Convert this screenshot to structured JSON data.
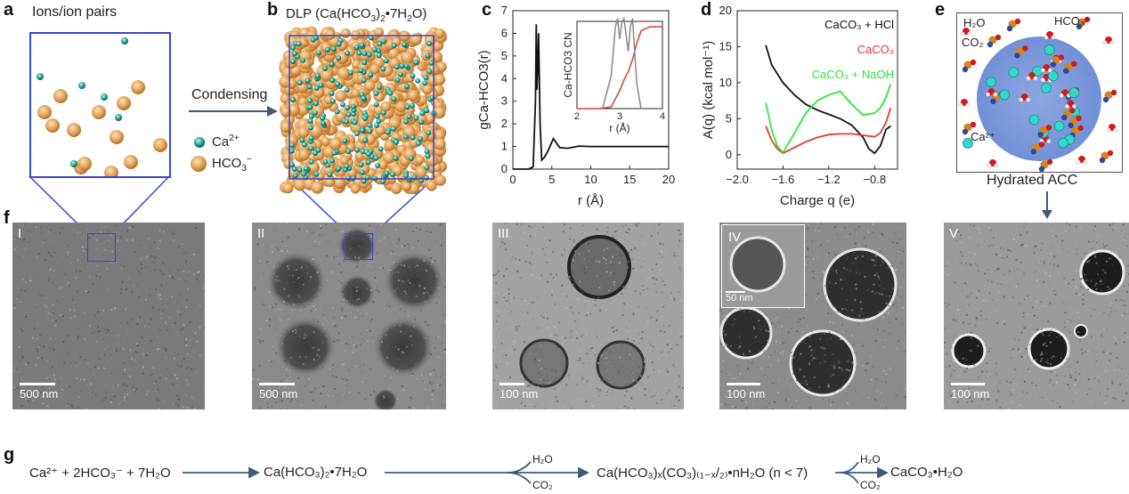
{
  "panel_a": {
    "letter": "a",
    "title": "Ions/ion pairs",
    "arrow_label": "Condensing",
    "legend_ca": "Ca",
    "legend_ca_sup": "2+",
    "legend_hco3": "HCO",
    "legend_hco3_sub": "3",
    "legend_hco3_sup": "−"
  },
  "panel_b": {
    "letter": "b",
    "title_pre": "DLP (Ca(HCO",
    "title_sub": "3",
    "title_mid": ")",
    "title_sub2": "2",
    "title_post": "•7H",
    "title_sub3": "2",
    "title_end": "O)"
  },
  "panel_c": {
    "letter": "c"
  },
  "panel_d": {
    "letter": "d"
  },
  "panel_e": {
    "letter": "e",
    "h2o": "H₂O",
    "hco3": "HCO₃⁻",
    "co2": "CO₂",
    "ca": "Ca²⁺",
    "caption": "Hydrated ACC"
  },
  "panel_f": {
    "letter": "f",
    "images": [
      {
        "num": "I",
        "scale": "500 nm"
      },
      {
        "num": "II",
        "scale": "500 nm"
      },
      {
        "num": "III",
        "scale": "100 nm"
      },
      {
        "num": "IV",
        "scale": "100 nm",
        "inset_scale": "50 nm"
      },
      {
        "num": "V",
        "scale": "100 nm"
      }
    ]
  },
  "panel_g": {
    "letter": "g",
    "eq1": "Ca²⁺ + 2HCO₃⁻ + 7H₂O",
    "eq2": "Ca(HCO₃)₂•7H₂O",
    "eq3": "Ca(HCO₃)ₓ(CO₃)₍₁₋ₓ/₂₎•nH₂O (n < 7)",
    "eq4": "CaCO₃•H₂O",
    "branch_up": "H₂O",
    "branch_down": "CO₂"
  },
  "chart_data": [
    {
      "type": "line",
      "panel": "c",
      "ylabel": "gCa-HCO3(r)",
      "xlabel": "r (Å)",
      "xlim": [
        0,
        20
      ],
      "ylim": [
        0,
        7
      ],
      "xticks": [
        0,
        5,
        10,
        15,
        20
      ],
      "yticks": [
        0,
        1,
        2,
        3,
        4,
        5,
        6,
        7
      ],
      "series": [
        {
          "color": "#111111",
          "x": [
            0,
            2.0,
            2.6,
            2.9,
            3.0,
            3.1,
            3.2,
            3.3,
            3.5,
            3.7,
            4.0,
            4.5,
            5.2,
            6.0,
            7.0,
            8.5,
            10,
            15,
            20
          ],
          "y": [
            0,
            0,
            0.1,
            3.0,
            6.4,
            3.5,
            4.5,
            6.0,
            2.0,
            0.4,
            0.5,
            0.8,
            1.35,
            0.95,
            0.92,
            1.02,
            1.0,
            1.0,
            1.0
          ]
        }
      ],
      "inset": {
        "ylabel": "Ca-HCO3 CN",
        "xlabel": "r (Å)",
        "xlim": [
          2,
          4
        ],
        "xticks": [
          2,
          3,
          4
        ],
        "series": [
          {
            "color": "#e53935",
            "x": [
              2.0,
              2.5,
              2.8,
              2.9,
              3.0,
              3.1,
              3.2,
              3.3,
              3.4,
              3.5,
              3.7,
              3.9,
              4.0
            ],
            "y": [
              0,
              0,
              0.02,
              0.12,
              0.22,
              0.35,
              0.45,
              0.6,
              0.8,
              0.95,
              1.0,
              1.0,
              1.0
            ]
          },
          {
            "color": "#888888",
            "x": [
              2.6,
              2.8,
              2.9,
              2.95,
              3.0,
              3.05,
              3.1,
              3.2,
              3.25,
              3.3,
              3.4,
              3.5
            ],
            "y": [
              0,
              0.4,
              1.0,
              1.1,
              0.85,
              1.05,
              1.1,
              0.7,
              1.0,
              1.1,
              0.3,
              0
            ]
          }
        ]
      }
    },
    {
      "type": "line",
      "panel": "d",
      "ylabel": "A(q) (kcal mol⁻¹)",
      "xlabel": "Charge q (e)",
      "xlim": [
        -2.0,
        -0.6
      ],
      "ylim": [
        -2,
        20
      ],
      "xticks": [
        -2.0,
        -1.6,
        -1.2,
        -0.8
      ],
      "yticks": [
        0,
        5,
        10,
        15,
        20
      ],
      "legend": [
        "CaCO₃ + HCl",
        "CaCO₃",
        "CaCO₃ + NaOH"
      ],
      "series": [
        {
          "name": "CaCO₃ + HCl",
          "color": "#111111",
          "x": [
            -1.75,
            -1.7,
            -1.6,
            -1.5,
            -1.4,
            -1.3,
            -1.2,
            -1.1,
            -1.0,
            -0.9,
            -0.85,
            -0.8,
            -0.75,
            -0.7,
            -0.66
          ],
          "y": [
            15.2,
            12.5,
            10.0,
            8.3,
            7.0,
            6.2,
            5.6,
            5.0,
            4.1,
            2.4,
            0.8,
            0.2,
            1.2,
            3.5,
            4.0
          ]
        },
        {
          "name": "CaCO₃",
          "color": "#e53935",
          "x": [
            -1.75,
            -1.7,
            -1.65,
            -1.6,
            -1.5,
            -1.4,
            -1.3,
            -1.2,
            -1.1,
            -1.0,
            -0.9,
            -0.8,
            -0.75,
            -0.7,
            -0.66
          ],
          "y": [
            4.0,
            2.0,
            0.8,
            0.2,
            1.0,
            1.8,
            2.4,
            2.8,
            2.9,
            2.9,
            2.7,
            2.5,
            3.0,
            4.5,
            6.5
          ]
        },
        {
          "name": "CaCO₃ + NaOH",
          "color": "#2ee83a",
          "x": [
            -1.75,
            -1.7,
            -1.65,
            -1.6,
            -1.5,
            -1.4,
            -1.3,
            -1.2,
            -1.1,
            -1.0,
            -0.9,
            -0.8,
            -0.75,
            -0.7,
            -0.66
          ],
          "y": [
            7.2,
            3.5,
            1.2,
            0.3,
            3.0,
            5.8,
            7.5,
            8.3,
            8.8,
            7.0,
            5.5,
            5.8,
            6.5,
            8.0,
            9.8
          ]
        }
      ]
    }
  ]
}
